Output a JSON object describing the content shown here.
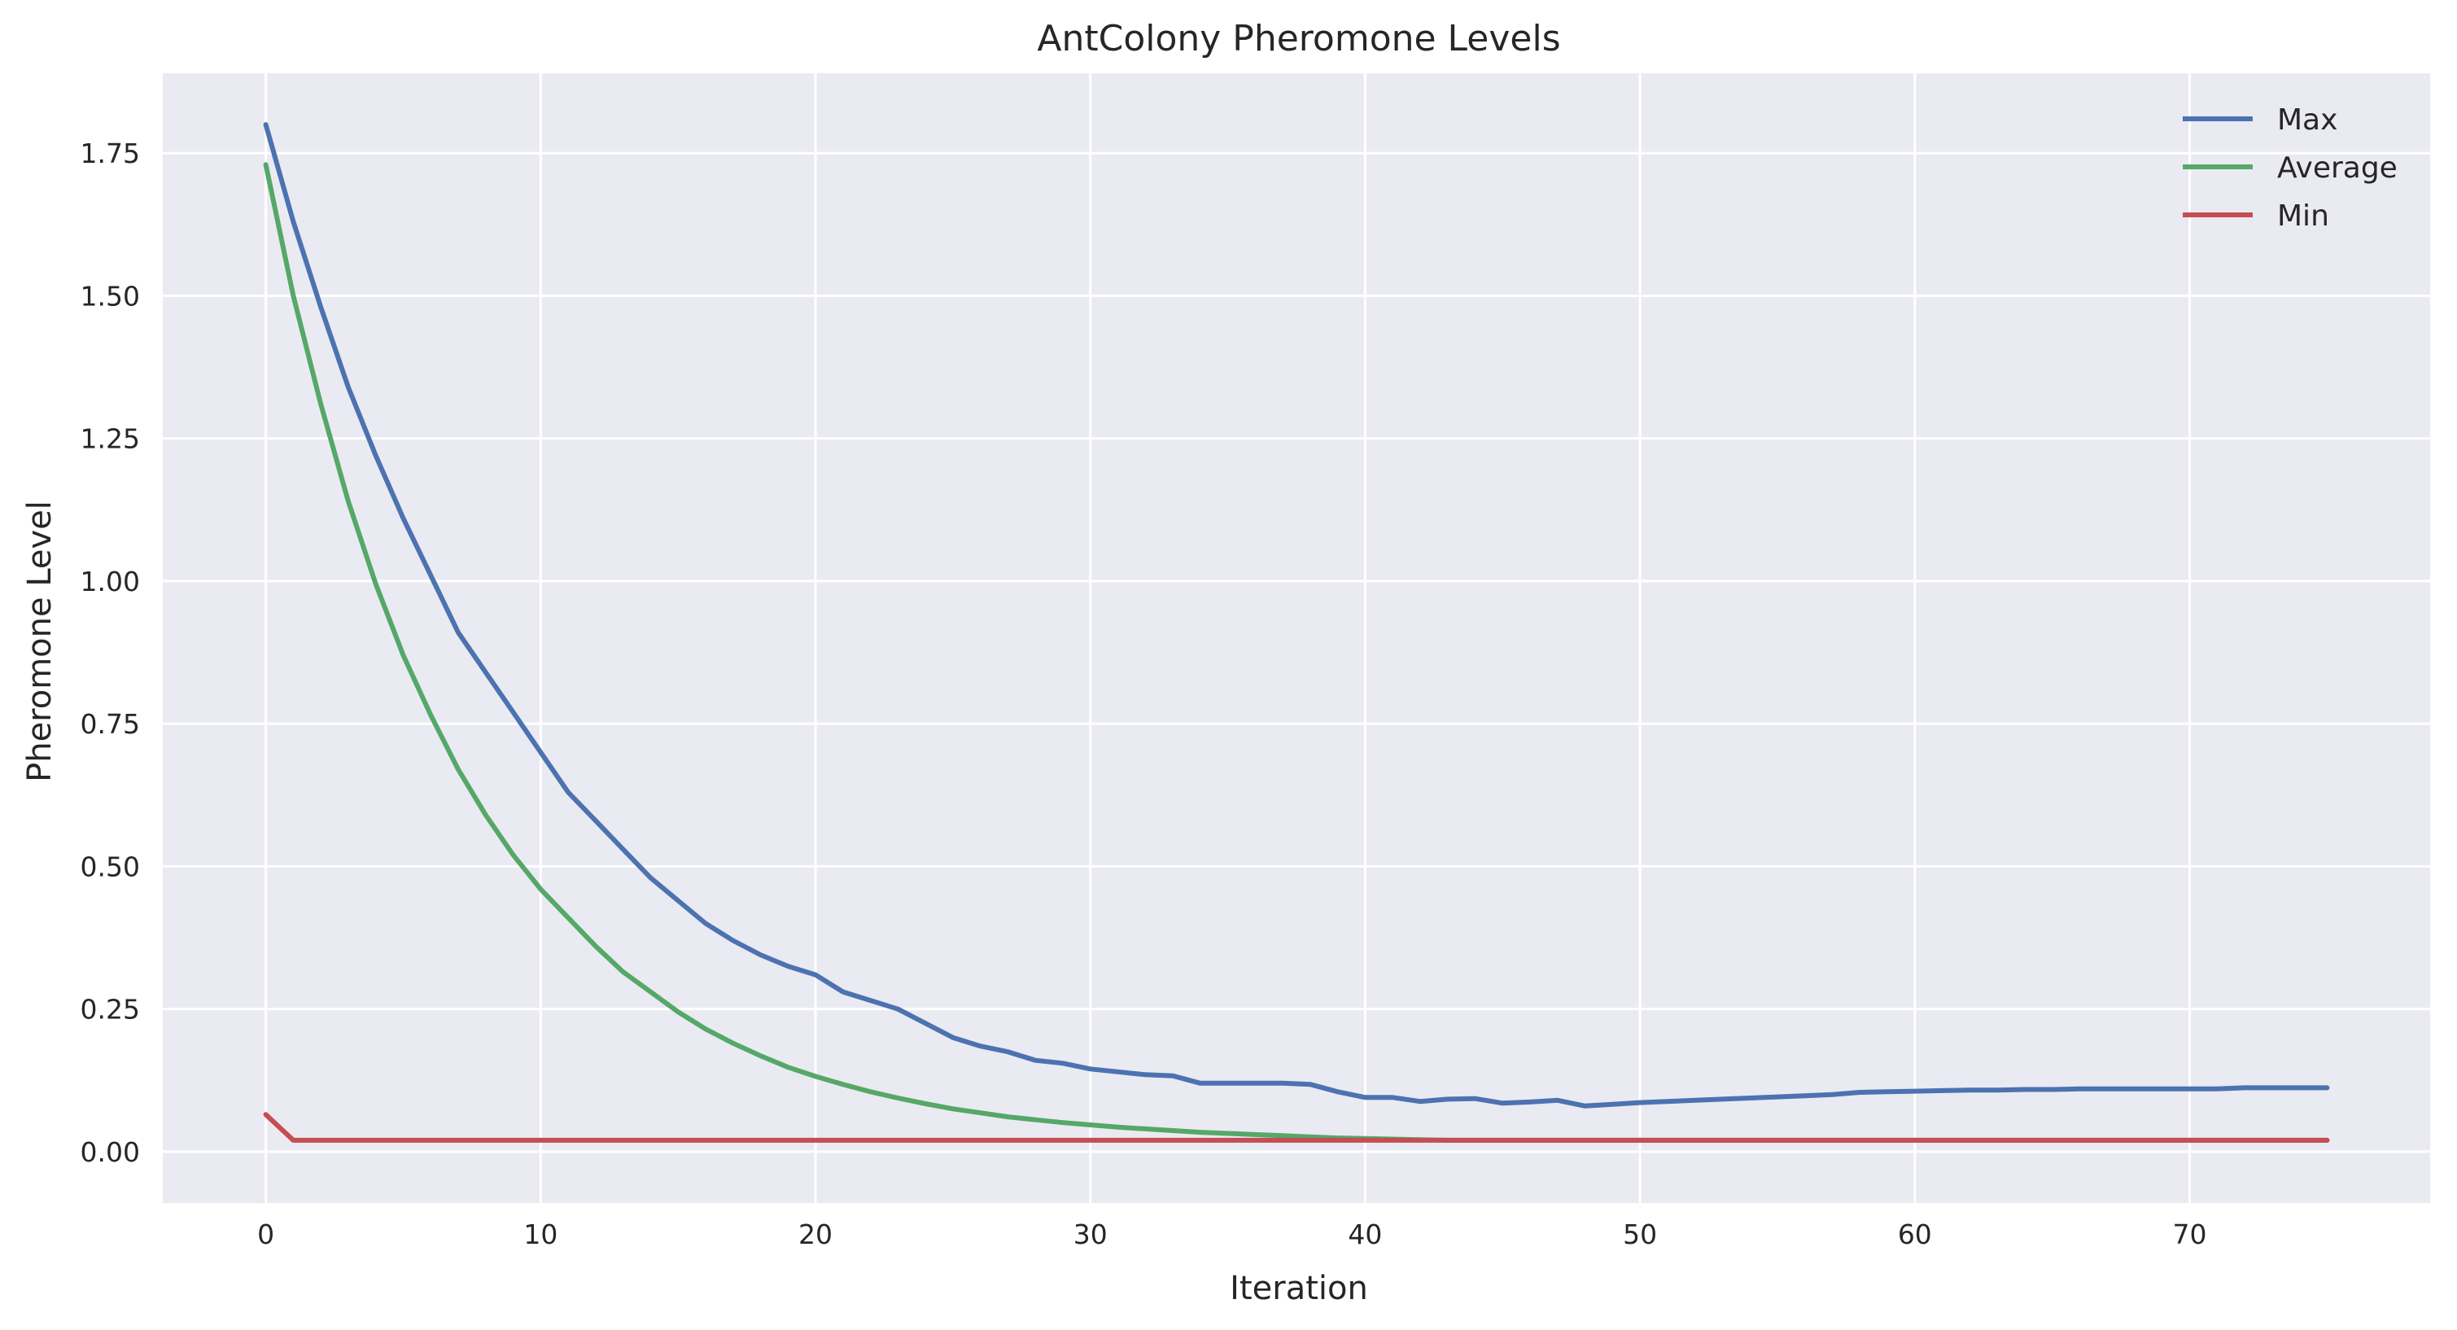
{
  "chart_data": {
    "type": "line",
    "title": "AntColony Pheromone Levels",
    "xlabel": "Iteration",
    "ylabel": "Pheromone Level",
    "xlim": [
      -3.75,
      78.75
    ],
    "ylim": [
      -0.09,
      1.89
    ],
    "xticks": [
      0,
      10,
      20,
      30,
      40,
      50,
      60,
      70
    ],
    "yticks": [
      0.0,
      0.25,
      0.5,
      0.75,
      1.0,
      1.25,
      1.5,
      1.75
    ],
    "xtick_labels": [
      "0",
      "10",
      "20",
      "30",
      "40",
      "50",
      "60",
      "70"
    ],
    "ytick_labels": [
      "0.00",
      "0.25",
      "0.50",
      "0.75",
      "1.00",
      "1.25",
      "1.50",
      "1.75"
    ],
    "grid": true,
    "legend_position": "top-right",
    "background_color": "#eaeaf2",
    "grid_color": "#ffffff",
    "x": [
      0,
      1,
      2,
      3,
      4,
      5,
      6,
      7,
      8,
      9,
      10,
      11,
      12,
      13,
      14,
      15,
      16,
      17,
      18,
      19,
      20,
      21,
      22,
      23,
      24,
      25,
      26,
      27,
      28,
      29,
      30,
      31,
      32,
      33,
      34,
      35,
      36,
      37,
      38,
      39,
      40,
      41,
      42,
      43,
      44,
      45,
      46,
      47,
      48,
      49,
      50,
      51,
      52,
      53,
      54,
      55,
      56,
      57,
      58,
      59,
      60,
      61,
      62,
      63,
      64,
      65,
      66,
      67,
      68,
      69,
      70,
      71,
      72,
      73,
      74,
      75
    ],
    "series": [
      {
        "name": "Max",
        "color": "#4c72b0",
        "values": [
          1.8,
          1.63,
          1.48,
          1.34,
          1.22,
          1.11,
          1.01,
          0.91,
          0.84,
          0.77,
          0.7,
          0.63,
          0.58,
          0.53,
          0.48,
          0.44,
          0.4,
          0.37,
          0.345,
          0.325,
          0.31,
          0.28,
          0.265,
          0.25,
          0.225,
          0.2,
          0.185,
          0.175,
          0.16,
          0.155,
          0.145,
          0.14,
          0.135,
          0.133,
          0.12,
          0.12,
          0.12,
          0.12,
          0.118,
          0.105,
          0.095,
          0.095,
          0.088,
          0.092,
          0.093,
          0.085,
          0.087,
          0.09,
          0.08,
          0.083,
          0.086,
          0.088,
          0.09,
          0.092,
          0.094,
          0.096,
          0.098,
          0.1,
          0.104,
          0.105,
          0.106,
          0.107,
          0.108,
          0.108,
          0.109,
          0.109,
          0.11,
          0.11,
          0.11,
          0.11,
          0.11,
          0.11,
          0.112,
          0.112,
          0.112,
          0.112
        ]
      },
      {
        "name": "Average",
        "color": "#55a868",
        "values": [
          1.73,
          1.5,
          1.31,
          1.14,
          0.995,
          0.87,
          0.765,
          0.67,
          0.59,
          0.52,
          0.46,
          0.41,
          0.36,
          0.315,
          0.28,
          0.245,
          0.215,
          0.19,
          0.168,
          0.148,
          0.132,
          0.118,
          0.105,
          0.094,
          0.084,
          0.075,
          0.068,
          0.061,
          0.056,
          0.051,
          0.047,
          0.043,
          0.04,
          0.037,
          0.034,
          0.032,
          0.03,
          0.028,
          0.026,
          0.024,
          0.023,
          0.022,
          0.021,
          0.02,
          0.02,
          0.02,
          0.02,
          0.02,
          0.02,
          0.02,
          0.02,
          0.02,
          0.02,
          0.02,
          0.02,
          0.02,
          0.02,
          0.02,
          0.02,
          0.02,
          0.02,
          0.02,
          0.02,
          0.02,
          0.02,
          0.02,
          0.02,
          0.02,
          0.02,
          0.02,
          0.02,
          0.02,
          0.02,
          0.02,
          0.02,
          0.02
        ]
      },
      {
        "name": "Min",
        "color": "#c44e52",
        "values": [
          0.065,
          0.02,
          0.02,
          0.02,
          0.02,
          0.02,
          0.02,
          0.02,
          0.02,
          0.02,
          0.02,
          0.02,
          0.02,
          0.02,
          0.02,
          0.02,
          0.02,
          0.02,
          0.02,
          0.02,
          0.02,
          0.02,
          0.02,
          0.02,
          0.02,
          0.02,
          0.02,
          0.02,
          0.02,
          0.02,
          0.02,
          0.02,
          0.02,
          0.02,
          0.02,
          0.02,
          0.02,
          0.02,
          0.02,
          0.02,
          0.02,
          0.02,
          0.02,
          0.02,
          0.02,
          0.02,
          0.02,
          0.02,
          0.02,
          0.02,
          0.02,
          0.02,
          0.02,
          0.02,
          0.02,
          0.02,
          0.02,
          0.02,
          0.02,
          0.02,
          0.02,
          0.02,
          0.02,
          0.02,
          0.02,
          0.02,
          0.02,
          0.02,
          0.02,
          0.02,
          0.02,
          0.02,
          0.02,
          0.02,
          0.02,
          0.02
        ]
      }
    ]
  }
}
